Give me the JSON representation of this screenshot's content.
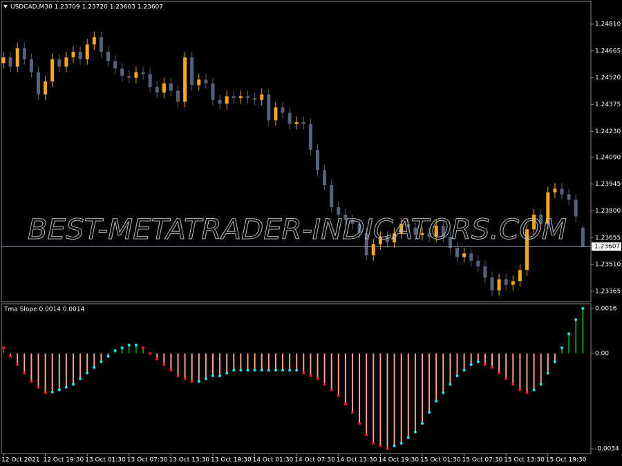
{
  "chart_data": [
    {
      "type": "candlestick",
      "title": "USDCAD,M30  1.23709 1.23720 1.23603 1.23607",
      "watermark": "BEST-METATRADER-INDICATORS.COM",
      "bull_color": "#f5a623",
      "bear_color": "#56627a",
      "price_line_color": "#9aa0a8",
      "open": [
        1.246,
        1.2463,
        1.2458,
        1.2468,
        1.2462,
        1.2455,
        1.2443,
        1.245,
        1.2462,
        1.2458,
        1.2463,
        1.2466,
        1.2462,
        1.247,
        1.2474,
        1.2466,
        1.2461,
        1.2457,
        1.2453,
        1.2452,
        1.2455,
        1.2454,
        1.2447,
        1.2444,
        1.2449,
        1.2445,
        1.2439,
        1.2463,
        1.2448,
        1.2451,
        1.2449,
        1.244,
        1.2438,
        1.2442,
        1.2441,
        1.2442,
        1.2441,
        1.244,
        1.2443,
        1.2429,
        1.2436,
        1.2433,
        1.2427,
        1.2428,
        1.2427,
        1.2413,
        1.2402,
        1.2394,
        1.2382,
        1.2378,
        1.2375,
        1.2373,
        1.2368,
        1.2356,
        1.2362,
        1.2366,
        1.2363,
        1.2368,
        1.2373,
        1.2371,
        1.2367,
        1.2368,
        1.2366,
        1.2372,
        1.2366,
        1.236,
        1.2355,
        1.2357,
        1.2353,
        1.235,
        1.2344,
        1.2337,
        1.2343,
        1.234,
        1.2342,
        1.2348,
        1.237,
        1.2378,
        1.2373,
        1.239,
        1.2392,
        1.2389,
        1.2386,
        1.23709
      ],
      "high": [
        1.2466,
        1.2466,
        1.2471,
        1.2471,
        1.2465,
        1.2458,
        1.2453,
        1.2465,
        1.2465,
        1.2466,
        1.2469,
        1.2469,
        1.2473,
        1.2477,
        1.2477,
        1.2469,
        1.2464,
        1.246,
        1.2456,
        1.2458,
        1.2458,
        1.2457,
        1.245,
        1.2452,
        1.2452,
        1.2448,
        1.2466,
        1.2466,
        1.2454,
        1.2454,
        1.2452,
        1.2443,
        1.2445,
        1.2445,
        1.2445,
        1.2445,
        1.2444,
        1.2446,
        1.2446,
        1.2439,
        1.2439,
        1.2436,
        1.2431,
        1.2431,
        1.243,
        1.2416,
        1.2405,
        1.2397,
        1.2385,
        1.2381,
        1.2378,
        1.2376,
        1.2371,
        1.2365,
        1.2369,
        1.2369,
        1.2371,
        1.2376,
        1.2376,
        1.2374,
        1.2371,
        1.2371,
        1.2375,
        1.2375,
        1.2369,
        1.2363,
        1.236,
        1.236,
        1.2356,
        1.2353,
        1.2347,
        1.2346,
        1.2346,
        1.2345,
        1.2351,
        1.2373,
        1.2381,
        1.2381,
        1.2393,
        1.2395,
        1.2395,
        1.2392,
        1.2389,
        1.2372
      ],
      "low": [
        1.2457,
        1.2455,
        1.2455,
        1.2459,
        1.2452,
        1.244,
        1.244,
        1.2447,
        1.2455,
        1.2455,
        1.246,
        1.2459,
        1.2459,
        1.2467,
        1.2463,
        1.2458,
        1.2454,
        1.245,
        1.2449,
        1.2449,
        1.2451,
        1.2444,
        1.2441,
        1.2441,
        1.2442,
        1.2436,
        1.2436,
        1.2445,
        1.2445,
        1.2446,
        1.2437,
        1.2435,
        1.2435,
        1.2438,
        1.2438,
        1.2438,
        1.2437,
        1.2437,
        1.2426,
        1.2426,
        1.243,
        1.2424,
        1.2424,
        1.2424,
        1.241,
        1.2399,
        1.2391,
        1.2379,
        1.2375,
        1.2372,
        1.237,
        1.2365,
        1.2353,
        1.2353,
        1.2359,
        1.236,
        1.236,
        1.2365,
        1.2368,
        1.2364,
        1.2364,
        1.2363,
        1.2363,
        1.2363,
        1.2357,
        1.2352,
        1.2352,
        1.235,
        1.2347,
        1.2341,
        1.2334,
        1.2334,
        1.2337,
        1.2337,
        1.2339,
        1.2345,
        1.2367,
        1.237,
        1.237,
        1.2387,
        1.2386,
        1.2383,
        1.2374,
        1.23603
      ],
      "close": [
        1.2463,
        1.2458,
        1.2468,
        1.2462,
        1.2455,
        1.2443,
        1.245,
        1.2462,
        1.2458,
        1.2463,
        1.2466,
        1.2462,
        1.247,
        1.2474,
        1.2466,
        1.2461,
        1.2457,
        1.2453,
        1.2452,
        1.2455,
        1.2454,
        1.2447,
        1.2444,
        1.2449,
        1.2445,
        1.2439,
        1.2463,
        1.2448,
        1.2451,
        1.2449,
        1.244,
        1.2438,
        1.2442,
        1.2441,
        1.2442,
        1.2441,
        1.244,
        1.2443,
        1.2429,
        1.2436,
        1.2433,
        1.2427,
        1.2428,
        1.2427,
        1.2413,
        1.2402,
        1.2394,
        1.2382,
        1.2378,
        1.2375,
        1.2373,
        1.2368,
        1.2356,
        1.2362,
        1.2366,
        1.2363,
        1.2368,
        1.2373,
        1.2371,
        1.2367,
        1.2368,
        1.2366,
        1.2372,
        1.2366,
        1.236,
        1.2355,
        1.2357,
        1.2353,
        1.235,
        1.2344,
        1.2337,
        1.2343,
        1.234,
        1.2342,
        1.2348,
        1.237,
        1.2378,
        1.2373,
        1.239,
        1.2392,
        1.2389,
        1.2386,
        1.2377,
        1.23607
      ],
      "ylim": [
        1.23309,
        1.24933
      ],
      "yticks": [
        {
          "value": 1.2481,
          "label": "1.24810"
        },
        1.24665,
        {
          "value": 1.2452,
          "label": "1.24520"
        },
        1.24375,
        {
          "value": 1.2423,
          "label": "1.24230"
        },
        {
          "value": 1.2409,
          "label": "1.24090"
        },
        1.23945,
        {
          "value": 1.238,
          "label": "1.23800"
        },
        1.23655,
        {
          "value": 1.2351,
          "label": "1.23510"
        },
        1.23365
      ]
    },
    {
      "type": "bar",
      "title": "Tma Slope 0.0014 0.0014",
      "positive_color": "#109010",
      "negative_color": "#f2a58a",
      "rising_color": "#22e6f0",
      "falling_color": "#ff1a1a",
      "categories": [
        "12 Oct 2021",
        null,
        null,
        null,
        null,
        null,
        "12 Oct 19:30",
        null,
        null,
        null,
        null,
        null,
        "13 Oct 01:30",
        null,
        null,
        null,
        null,
        null,
        "13 Oct 07:30",
        null,
        null,
        null,
        null,
        null,
        "13 Oct 13:30",
        null,
        null,
        null,
        null,
        null,
        "13 Oct 19:30",
        null,
        null,
        null,
        null,
        null,
        "14 Oct 01:30",
        null,
        null,
        null,
        null,
        null,
        "14 Oct 07:30",
        null,
        null,
        null,
        null,
        null,
        "14 Oct 13:30",
        null,
        null,
        null,
        null,
        null,
        "14 Oct 19:30",
        null,
        null,
        null,
        null,
        null,
        "15 Oct 01:30",
        null,
        null,
        null,
        null,
        null,
        "15 Oct 07:30",
        null,
        null,
        null,
        null,
        null,
        "15 Oct 13:30",
        null,
        null,
        null,
        null,
        null,
        "15 Oct 19:30",
        null,
        null,
        null,
        null,
        null
      ],
      "values": [
        0.0002,
        -0.0001,
        -0.0004,
        -0.0007,
        -0.001,
        -0.0012,
        -0.0014,
        -0.00138,
        -0.0013,
        -0.0012,
        -0.0011,
        -0.0009,
        -0.0007,
        -0.0005,
        -0.0003,
        -0.0001,
        0.0001,
        0.0002,
        0.0003,
        0.0003,
        0.0002,
        0,
        -0.0002,
        -0.0004,
        -0.0006,
        -0.0008,
        -0.0009,
        -0.001,
        -0.001,
        -0.0009,
        -0.0008,
        -0.0008,
        -0.0007,
        -0.0006,
        -0.0006,
        -0.0006,
        -0.0006,
        -0.0006,
        -0.0006,
        -0.0006,
        -0.0006,
        -0.0006,
        -0.0006,
        -0.0007,
        -0.0008,
        -0.0009,
        -0.0011,
        -0.0013,
        -0.0015,
        -0.0018,
        -0.0021,
        -0.0025,
        -0.0029,
        -0.0032,
        -0.0033,
        -0.0034,
        -0.0033,
        -0.0032,
        -0.003,
        -0.0028,
        -0.0025,
        -0.0021,
        -0.0017,
        -0.0014,
        -0.0011,
        -0.0008,
        -0.0006,
        -0.0004,
        -0.0003,
        -0.0004,
        -0.0005,
        -0.0007,
        -0.0009,
        -0.0011,
        -0.0013,
        -0.0014,
        -0.0013,
        -0.0011,
        -0.0007,
        -0.0003,
        0.0002,
        0.0007,
        0.0012,
        0.0016
      ],
      "ylim": [
        -0.00357,
        0.00177
      ],
      "yticks": [
        0.0016,
        {
          "value": 0,
          "label": "0.00"
        },
        -0.0034
      ]
    }
  ]
}
